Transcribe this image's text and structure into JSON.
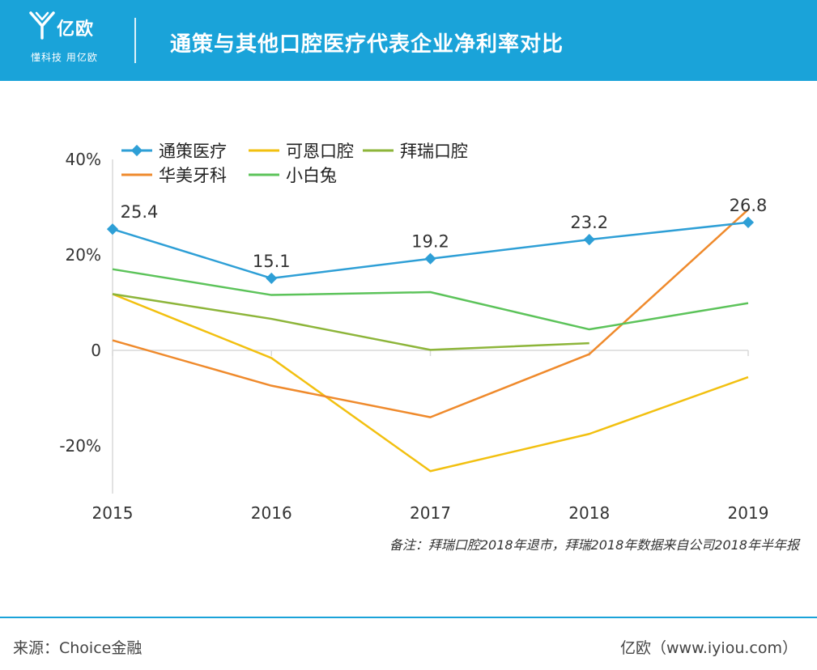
{
  "header": {
    "logo_name": "亿欧",
    "logo_slogan": "懂科技 用亿欧",
    "title": "通策与其他口腔医疗代表企业净利率对比"
  },
  "chart_data": {
    "type": "line",
    "categories": [
      "2015",
      "2016",
      "2017",
      "2018",
      "2019"
    ],
    "y_ticks": [
      {
        "value": 40,
        "label": "40%"
      },
      {
        "value": 20,
        "label": "20%"
      },
      {
        "value": 0,
        "label": "0"
      },
      {
        "value": -20,
        "label": "-20%"
      }
    ],
    "ylim": [
      -30,
      40
    ],
    "grid": false,
    "legend_position": "top-left",
    "series": [
      {
        "name": "通策医疗",
        "color": "#2e9fd6",
        "markers": true,
        "values": [
          25.4,
          15.1,
          19.2,
          23.2,
          26.8
        ],
        "labels": [
          "25.4",
          "15.1",
          "19.2",
          "23.2",
          "26.8"
        ]
      },
      {
        "name": "可恩口腔",
        "color": "#f2c010",
        "values": [
          11.8,
          -1.6,
          -25.3,
          -17.5,
          -5.6
        ]
      },
      {
        "name": "拜瑞口腔",
        "color": "#8db53a",
        "values": [
          11.8,
          6.6,
          0.1,
          1.5,
          null
        ]
      },
      {
        "name": "华美牙科",
        "color": "#ef8a2c",
        "values": [
          2.1,
          -7.4,
          -14,
          -0.8,
          29.5
        ]
      },
      {
        "name": "小白兔",
        "color": "#5cc35a",
        "values": [
          17,
          11.6,
          12.2,
          4.4,
          9.9
        ]
      }
    ]
  },
  "note": "备注：拜瑞口腔2018年退市，拜瑞2018年数据来自公司2018年半年报",
  "footer": {
    "source": "来源：Choice金融",
    "site": "亿欧（www.iyiou.com）"
  }
}
